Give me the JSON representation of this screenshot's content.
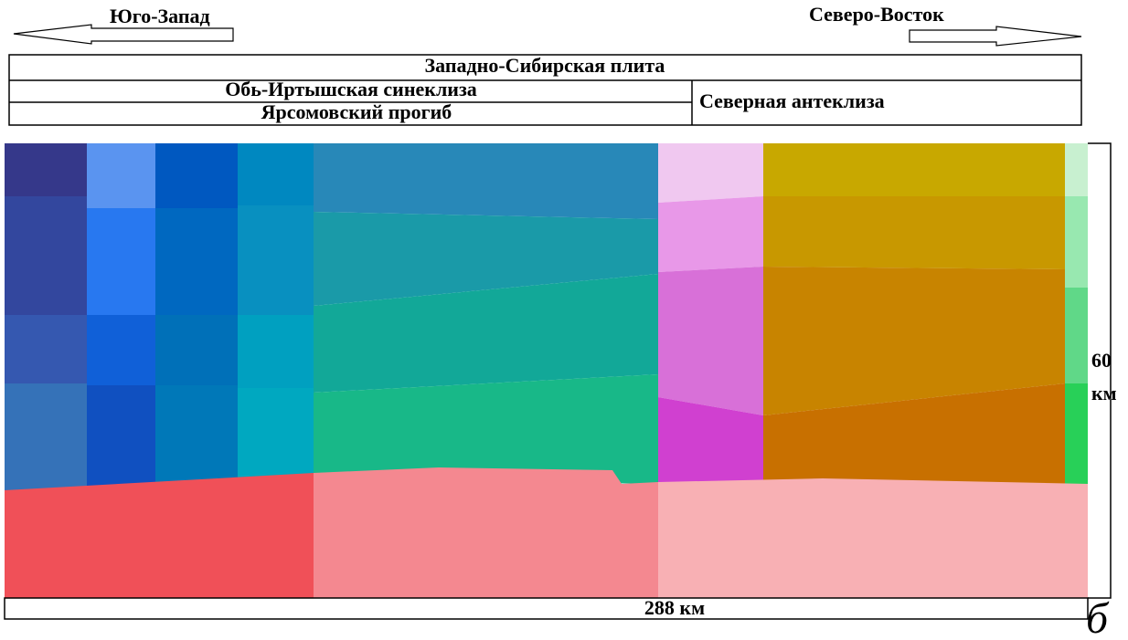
{
  "directions": {
    "left": "Юго-Запад",
    "right": "Северо-Восток"
  },
  "header": {
    "plate": "Западно-Сибирская плита",
    "syneclise": "Обь-Иртышская синеклиза",
    "trough": "Ярсомовский прогиб",
    "anteclise": "Северная антеклиза"
  },
  "scale": {
    "depth": [
      "60",
      "км"
    ],
    "length": "288 км"
  },
  "panel_label": "б"
}
